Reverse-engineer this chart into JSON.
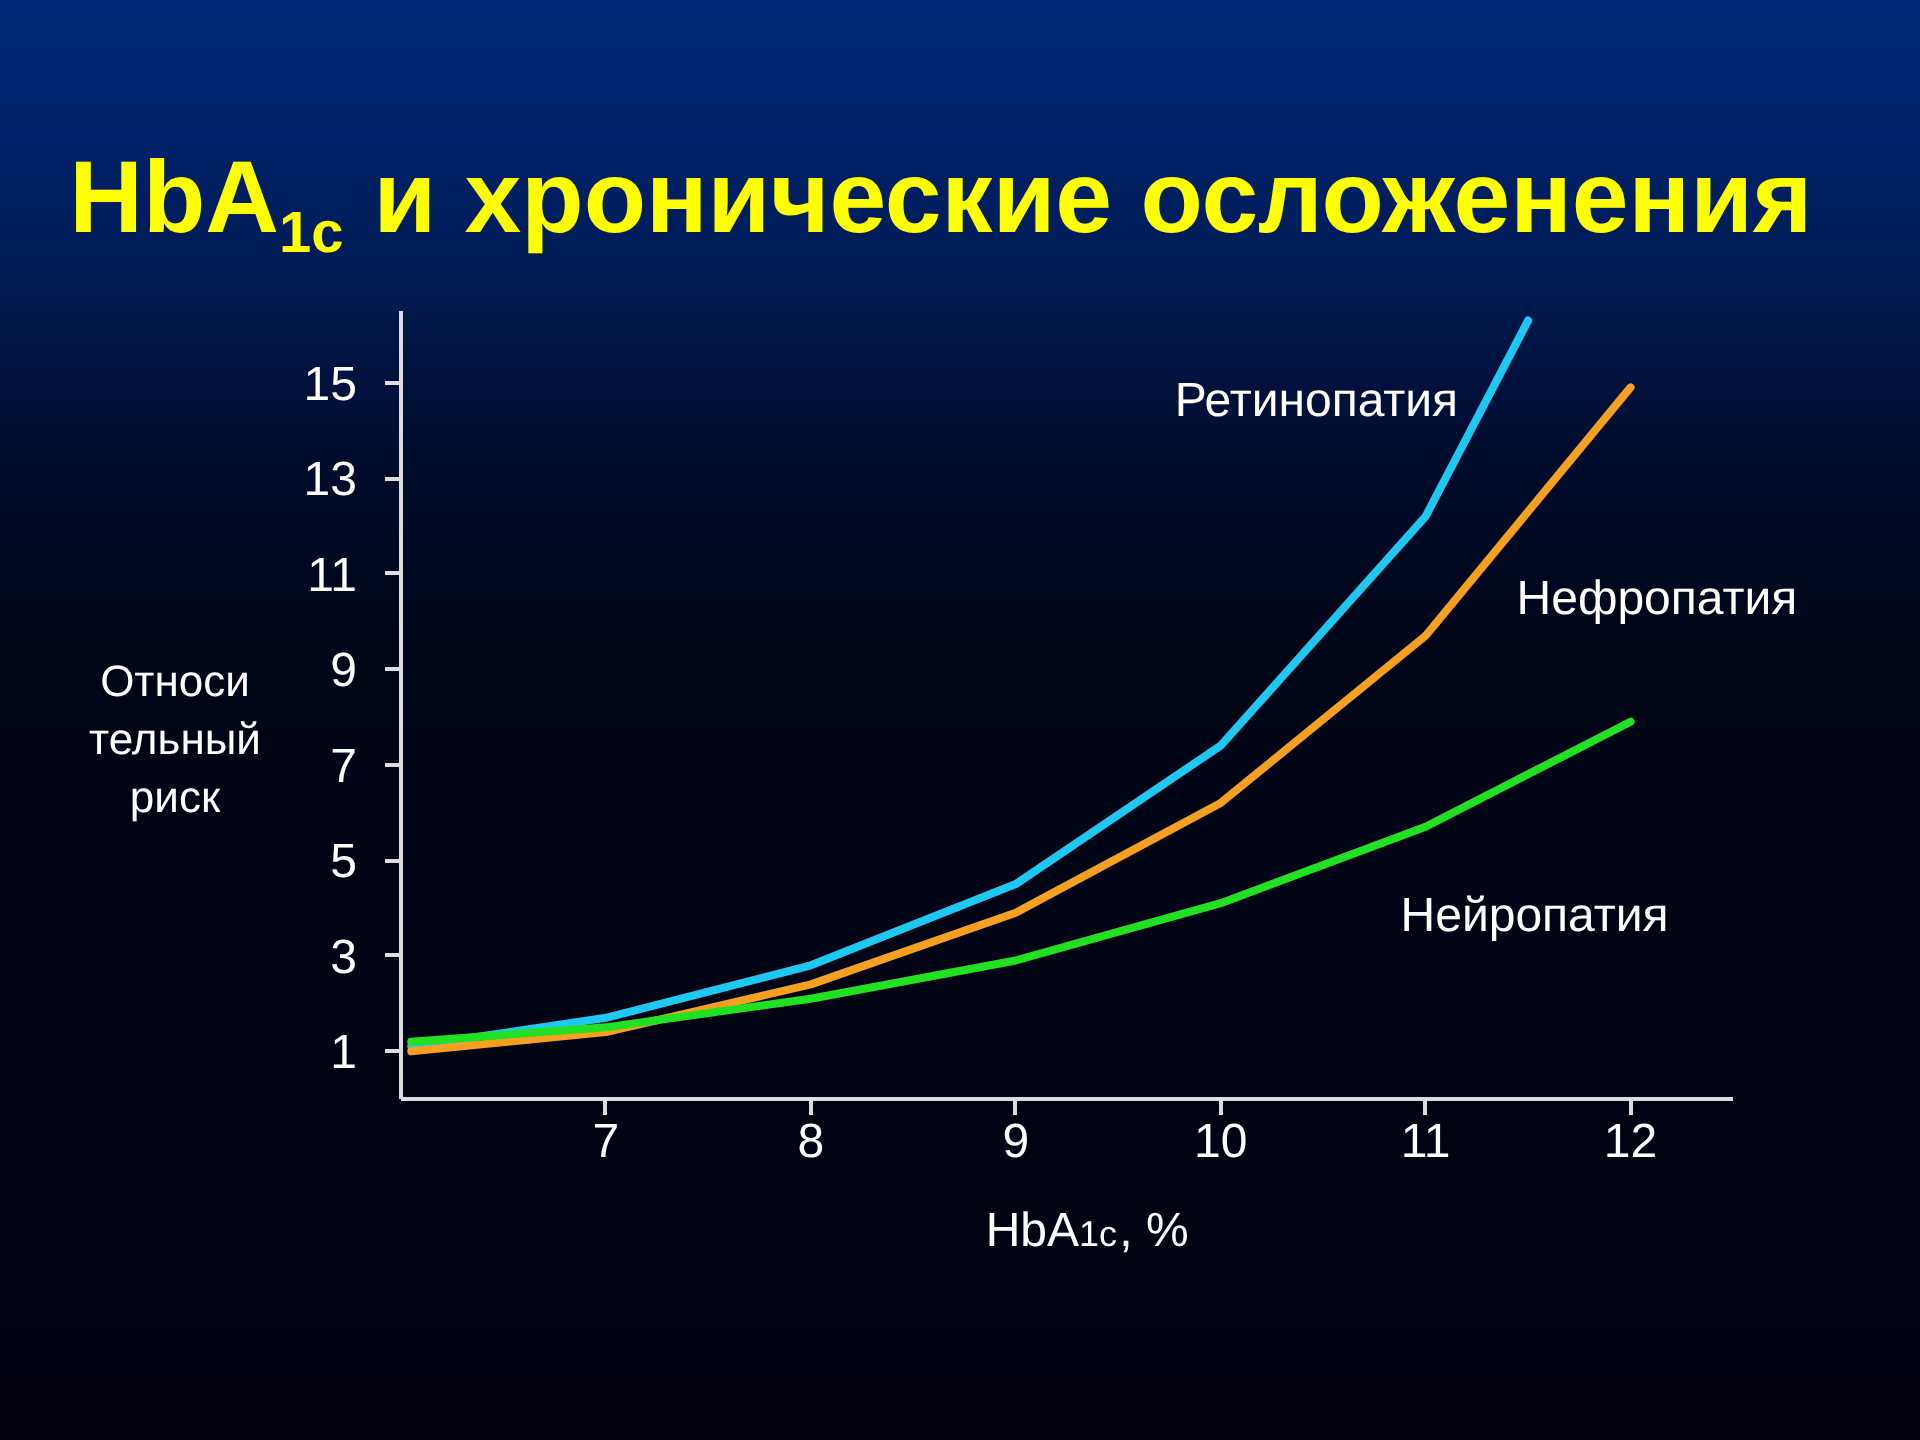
{
  "chart_data": {
    "type": "line",
    "title": "HbA$_{1c}$ и хронические осложенения",
    "xlabel": "HbA$_{1c}$, %",
    "ylabel": "Относи\nтельный\nриск",
    "x": [
      6.05,
      7,
      8,
      9,
      10,
      11,
      12
    ],
    "xlim": [
      6,
      12.5
    ],
    "xticks": [
      7,
      8,
      9,
      10,
      11,
      12
    ],
    "ylim": [
      0,
      16.5
    ],
    "yticks": [
      1,
      3,
      5,
      7,
      9,
      11,
      13,
      15
    ],
    "line_style": "solid",
    "series": [
      {
        "name": "Ретинопатия",
        "color": "#1ec8f0",
        "x": [
          6.05,
          7,
          8,
          9,
          10,
          11,
          11.5
        ],
        "values": [
          1.1,
          1.7,
          2.8,
          4.5,
          7.4,
          12.2,
          16.3
        ]
      },
      {
        "name": "Нефропатия",
        "color": "#f5a020",
        "values": [
          1.0,
          1.4,
          2.4,
          3.9,
          6.2,
          9.7,
          14.9
        ]
      },
      {
        "name": "Нейропатия",
        "color": "#22e022",
        "values": [
          1.2,
          1.5,
          2.1,
          2.9,
          4.1,
          5.7,
          7.9
        ]
      }
    ]
  }
}
